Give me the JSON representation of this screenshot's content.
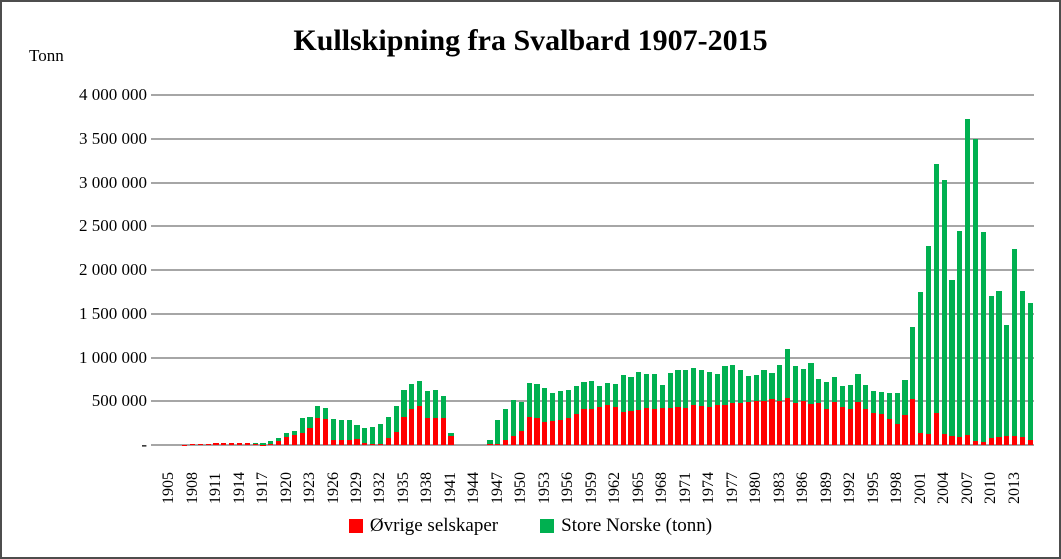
{
  "chart_data": {
    "type": "bar",
    "stacked": true,
    "title": "Kullskipning fra Svalbard 1907-2015",
    "ylabel": "Tonn",
    "ylim": [
      0,
      4000000
    ],
    "grid": true,
    "legend_position": "bottom",
    "year_start": 1905,
    "year_end": 2015,
    "y_ticks": {
      "values": [
        0,
        500000,
        1000000,
        1500000,
        2000000,
        2500000,
        3000000,
        3500000,
        4000000
      ],
      "labels": [
        "-",
        "500 000",
        "1 000 000",
        "1 500 000",
        "2 000 000",
        "2 500 000",
        "3 000 000",
        "3 500 000",
        "4 000 000"
      ]
    },
    "x_tick_labels": [
      "1905",
      "1908",
      "1911",
      "1914",
      "1917",
      "1920",
      "1923",
      "1926",
      "1929",
      "1932",
      "1935",
      "1938",
      "1941",
      "1944",
      "1947",
      "1950",
      "1953",
      "1956",
      "1959",
      "1962",
      "1965",
      "1968",
      "1971",
      "1974",
      "1977",
      "1980",
      "1983",
      "1986",
      "1989",
      "1992",
      "1995",
      "1998",
      "2001",
      "2004",
      "2007",
      "2010",
      "2013"
    ],
    "series": [
      {
        "name": "Øvrige selskaper",
        "color": "#FF0000",
        "values": [
          0,
          0,
          5000,
          8000,
          10000,
          14000,
          19000,
          19000,
          26000,
          26000,
          19000,
          8000,
          5000,
          15000,
          49000,
          89000,
          109000,
          142000,
          194000,
          304000,
          292000,
          61000,
          61000,
          61000,
          73000,
          20000,
          15000,
          15000,
          79000,
          147000,
          316000,
          406000,
          444000,
          312000,
          312000,
          305000,
          98000,
          0,
          0,
          0,
          0,
          15000,
          11000,
          56000,
          105000,
          162000,
          320000,
          312000,
          267000,
          274000,
          282000,
          305000,
          350000,
          406000,
          417000,
          432000,
          463000,
          437000,
          381000,
          389000,
          400000,
          419000,
          411000,
          426000,
          419000,
          437000,
          419000,
          456000,
          448000,
          437000,
          463000,
          463000,
          485000,
          481000,
          493000,
          500000,
          500000,
          523000,
          500000,
          538000,
          485000,
          500000,
          474000,
          485000,
          417000,
          493000,
          436000,
          417000,
          493000,
          406000,
          371000,
          360000,
          300000,
          238000,
          340000,
          529000,
          136000,
          130000,
          371000,
          125000,
          106000,
          95000,
          114000,
          50000,
          30000,
          85000,
          90000,
          100000,
          100000,
          95000,
          55000
        ]
      },
      {
        "name": "Store Norske (tonn)",
        "color": "#00B050",
        "values": [
          0,
          0,
          0,
          0,
          0,
          0,
          0,
          0,
          0,
          0,
          0,
          11000,
          18000,
          30000,
          32000,
          45000,
          53000,
          170000,
          130000,
          142000,
          126000,
          239000,
          223000,
          222000,
          158000,
          179000,
          195000,
          229000,
          237000,
          300000,
          308000,
          294000,
          293000,
          305000,
          312000,
          251000,
          45000,
          0,
          0,
          0,
          0,
          38000,
          276000,
          350000,
          414000,
          327000,
          394000,
          384000,
          383000,
          320000,
          331000,
          327000,
          319000,
          312000,
          320000,
          237000,
          244000,
          259000,
          415000,
          392000,
          433000,
          396000,
          404000,
          259000,
          407000,
          419000,
          444000,
          425000,
          408000,
          396000,
          344000,
          437000,
          434000,
          377000,
          299000,
          296000,
          360000,
          303000,
          417000,
          554000,
          417000,
          364000,
          466000,
          265000,
          303000,
          284000,
          235000,
          273000,
          322000,
          277000,
          243000,
          246000,
          300000,
          359000,
          408000,
          824000,
          1614000,
          2140000,
          2840000,
          2905000,
          1780000,
          2348000,
          3616000,
          3450000,
          2410000,
          1615000,
          1665000,
          1270000,
          2140000,
          1665000,
          1565000
        ]
      }
    ]
  },
  "colors": {
    "background": "#FFFFFF",
    "grid": "#A6A6A6",
    "frame_border": "#4D4D4D",
    "text": "#000000"
  }
}
